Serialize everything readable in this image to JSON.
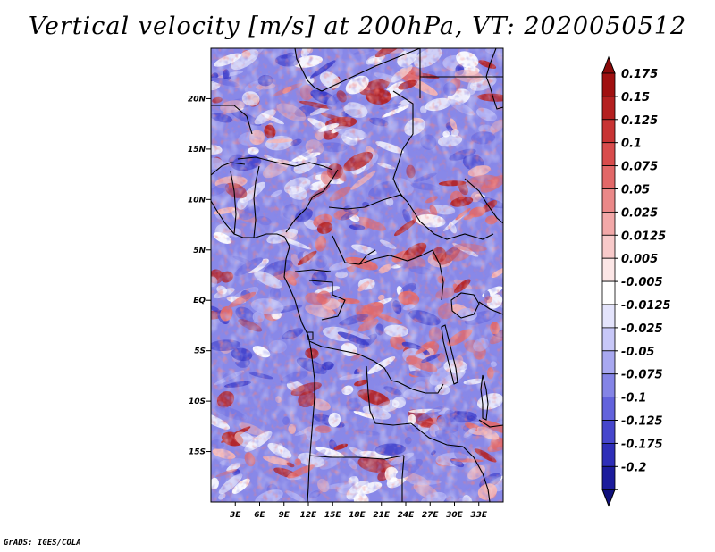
{
  "title": "Vertical velocity [m/s] at 200hPa, VT: 2020050512",
  "footer": "GrADS: IGES/COLA",
  "map": {
    "lon_range": [
      0,
      36
    ],
    "lat_range": [
      -20,
      25
    ],
    "lon_ticks": [
      {
        "value": 3,
        "label": "3E"
      },
      {
        "value": 6,
        "label": "6E"
      },
      {
        "value": 9,
        "label": "9E"
      },
      {
        "value": 12,
        "label": "12E"
      },
      {
        "value": 15,
        "label": "15E"
      },
      {
        "value": 18,
        "label": "18E"
      },
      {
        "value": 21,
        "label": "21E"
      },
      {
        "value": 24,
        "label": "24E"
      },
      {
        "value": 27,
        "label": "27E"
      },
      {
        "value": 30,
        "label": "30E"
      },
      {
        "value": 33,
        "label": "33E"
      }
    ],
    "lat_ticks": [
      {
        "value": 20,
        "label": "20N"
      },
      {
        "value": 15,
        "label": "15N"
      },
      {
        "value": 10,
        "label": "10N"
      },
      {
        "value": 5,
        "label": "5N"
      },
      {
        "value": 0,
        "label": "EQ"
      },
      {
        "value": -5,
        "label": "5S"
      },
      {
        "value": -10,
        "label": "10S"
      },
      {
        "value": -15,
        "label": "15S"
      }
    ]
  },
  "colorbar": {
    "levels": [
      {
        "label": "0.175",
        "color": "#a01010"
      },
      {
        "label": "0.15",
        "color": "#b42020"
      },
      {
        "label": "0.125",
        "color": "#c83434"
      },
      {
        "label": "0.1",
        "color": "#d84c4c"
      },
      {
        "label": "0.075",
        "color": "#e26868"
      },
      {
        "label": "0.05",
        "color": "#ea8888"
      },
      {
        "label": "0.025",
        "color": "#f2a8a8"
      },
      {
        "label": "0.0125",
        "color": "#f8caca"
      },
      {
        "label": "0.005",
        "color": "#fce6e6"
      },
      {
        "label": "-0.005",
        "color": "#ffffff"
      },
      {
        "label": "-0.0125",
        "color": "#e4e4fc"
      },
      {
        "label": "-0.025",
        "color": "#c8c8f8"
      },
      {
        "label": "-0.05",
        "color": "#a8a8f0"
      },
      {
        "label": "-0.075",
        "color": "#8484e6"
      },
      {
        "label": "-0.1",
        "color": "#6262dc"
      },
      {
        "label": "-0.125",
        "color": "#4646cc"
      },
      {
        "label": "-0.175",
        "color": "#2e2eb8"
      },
      {
        "label": "-0.2",
        "color": "#1c1c9c"
      }
    ],
    "top_color": "#8c0a0a",
    "bottom_color": "#10107c"
  },
  "colors": {
    "red_dark": "#b42020",
    "red_mid": "#e26868",
    "red_light": "#f4b4b4",
    "blue_dark": "#3a3ac8",
    "blue_mid": "#7070e0",
    "blue_light": "#b4b4f4",
    "neutral": "#ffffff"
  }
}
